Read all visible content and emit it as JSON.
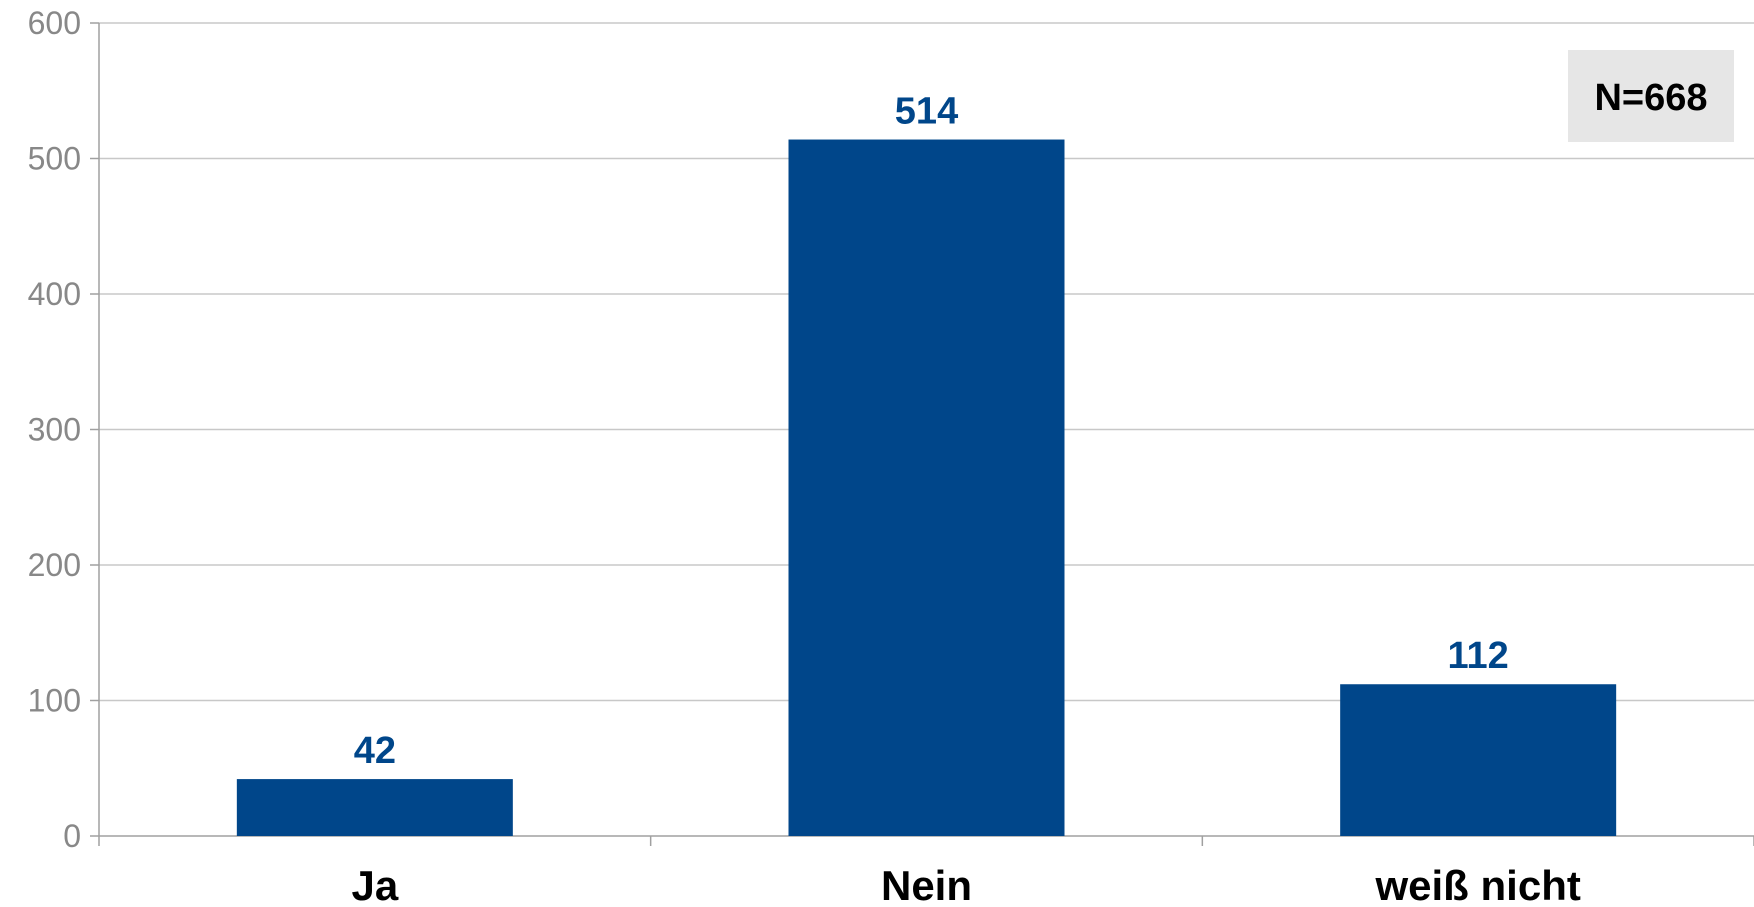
{
  "chart_data": {
    "type": "bar",
    "categories": [
      "Ja",
      "Nein",
      "weiß nicht"
    ],
    "values": [
      42,
      514,
      112
    ],
    "ylim": [
      0,
      600
    ],
    "yticks": [
      0,
      100,
      200,
      300,
      400,
      500,
      600
    ],
    "grid": true,
    "annotation": "N=668",
    "annotation_position": "top-right",
    "bar_color": "#00468a",
    "label_color": "#00468a",
    "grid_color": "#c8c8c8",
    "annotation_bg": "#e6e6e6"
  }
}
